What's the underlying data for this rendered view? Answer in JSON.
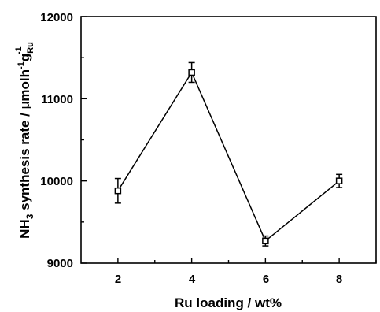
{
  "chart_data": {
    "type": "line",
    "x": [
      2,
      4,
      6,
      8
    ],
    "y": [
      9880,
      11320,
      9270,
      10000
    ],
    "error": [
      150,
      120,
      60,
      80
    ],
    "xlim": [
      1,
      9
    ],
    "ylim": [
      9000,
      12000
    ],
    "xticks": [
      "2",
      "4",
      "6",
      "8"
    ],
    "yticks": [
      "9000",
      "10000",
      "11000",
      "12000"
    ],
    "xlabel": "Ru loading / wt%",
    "ylabel": {
      "nh": "NH",
      "sub3": "3",
      "mid": " synthesis rate / ",
      "mu": "μ",
      "molh": "molh",
      "sup_neg1": "-1",
      "g": "g",
      "sub_ru": "Ru",
      "sup_1": "-1"
    },
    "marker": "open-square",
    "grid": false,
    "line_color": "#000000"
  }
}
